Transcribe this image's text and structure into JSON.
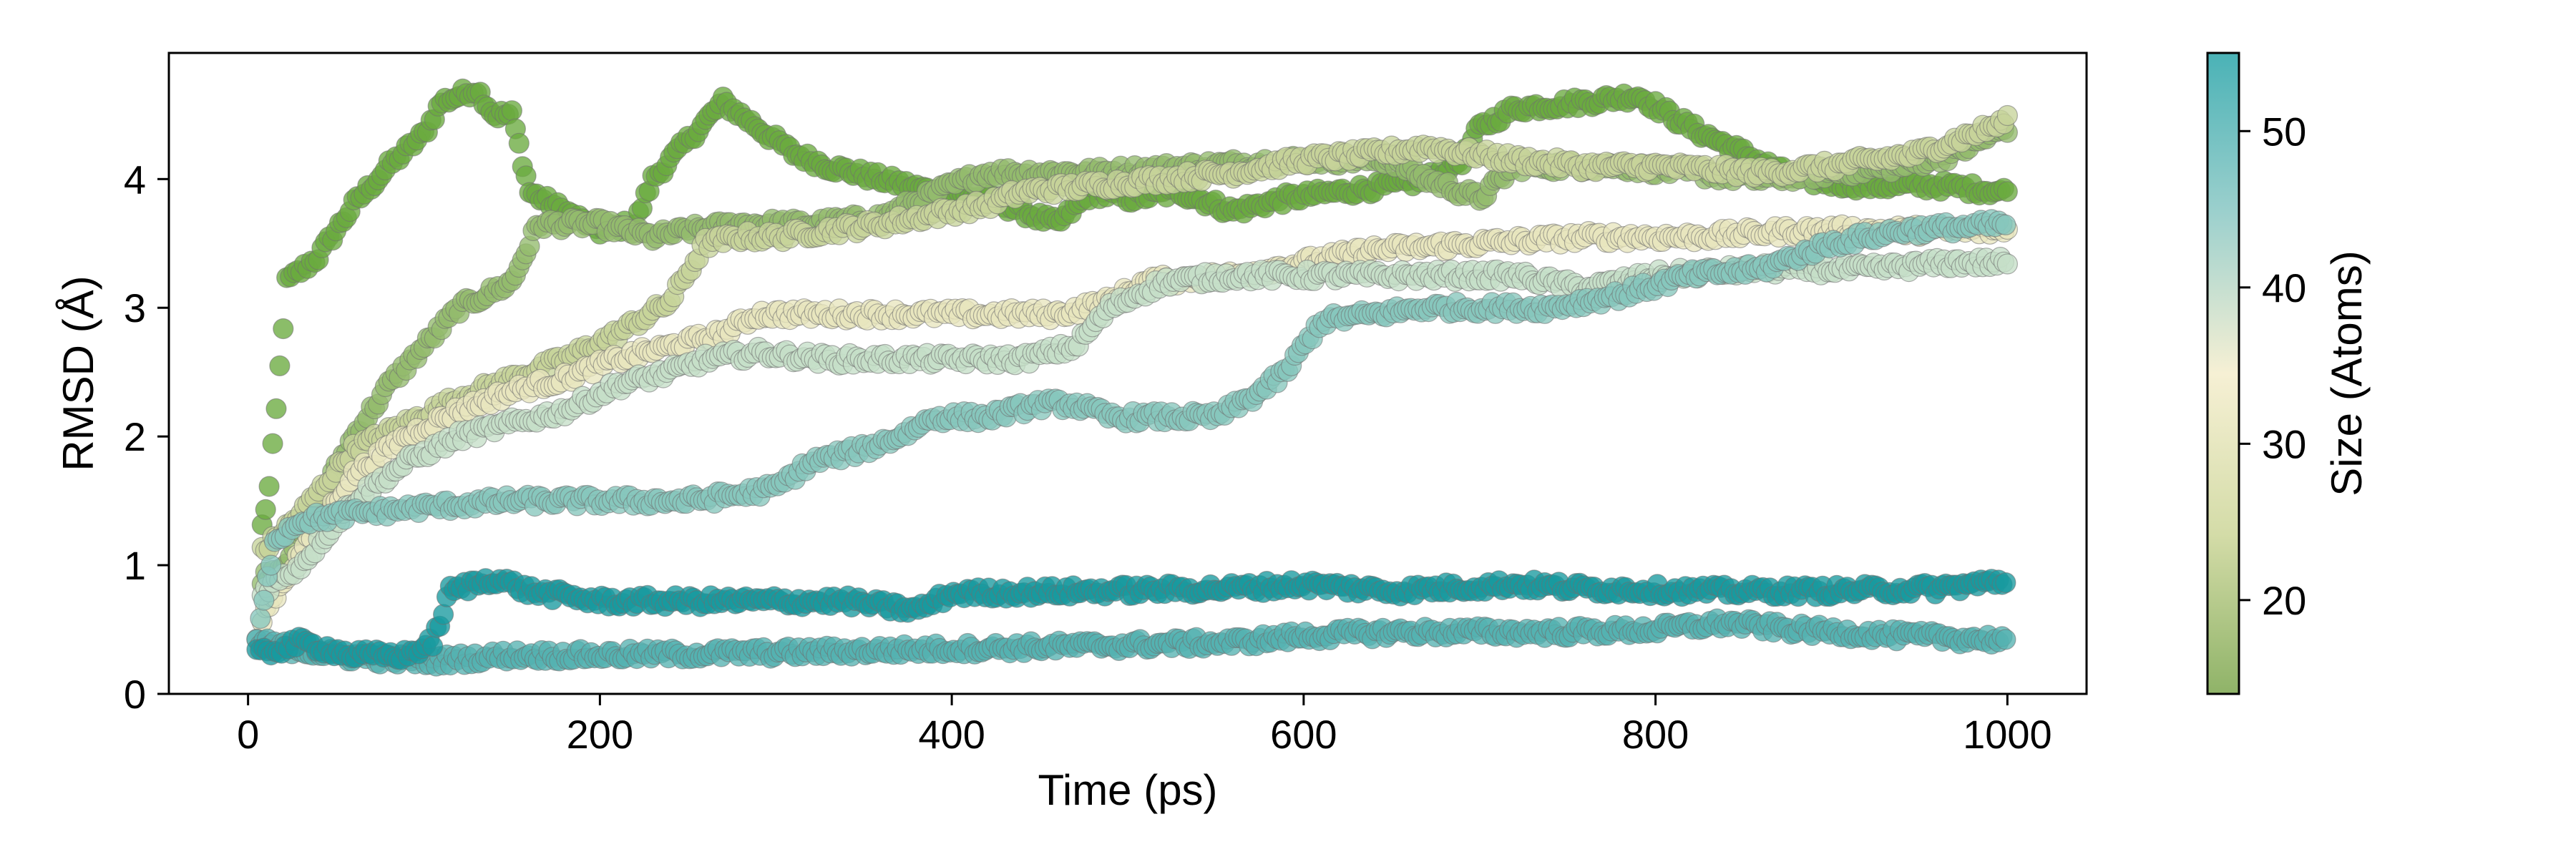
{
  "chart_data": {
    "type": "scatter",
    "title": "",
    "xlabel": "Time (ps)",
    "ylabel": "RMSD (Å)",
    "xlim": [
      -45,
      1045
    ],
    "ylim": [
      0,
      4.98
    ],
    "xticks": [
      0,
      200,
      400,
      600,
      800,
      1000
    ],
    "yticks": [
      0,
      1,
      2,
      3,
      4
    ],
    "grid": false,
    "legend": "none",
    "colorbar": {
      "label": "Size (Atoms)",
      "range": [
        14,
        55
      ],
      "ticks": [
        20,
        30,
        40,
        50
      ],
      "colormap": [
        "#8fb368",
        "#d4dca8",
        "#f6f0d4",
        "#9cd0cd",
        "#4ab2b6"
      ]
    },
    "marker_edge_color": "#6f6f6f",
    "series": [
      {
        "size": 16,
        "color": "#6aab3f",
        "keypoints": [
          [
            8,
            1.3
          ],
          [
            12,
            1.6
          ],
          [
            16,
            2.2
          ],
          [
            22,
            3.2
          ],
          [
            40,
            3.4
          ],
          [
            60,
            3.8
          ],
          [
            80,
            4.1
          ],
          [
            100,
            4.35
          ],
          [
            110,
            4.6
          ],
          [
            130,
            4.7
          ],
          [
            140,
            4.5
          ],
          [
            150,
            4.5
          ],
          [
            160,
            3.9
          ],
          [
            180,
            3.75
          ],
          [
            200,
            3.6
          ],
          [
            220,
            3.65
          ],
          [
            230,
            4.0
          ],
          [
            250,
            4.3
          ],
          [
            270,
            4.6
          ],
          [
            290,
            4.4
          ],
          [
            310,
            4.2
          ],
          [
            330,
            4.1
          ],
          [
            360,
            4.0
          ],
          [
            390,
            3.9
          ],
          [
            420,
            3.85
          ],
          [
            440,
            3.75
          ],
          [
            460,
            3.65
          ],
          [
            480,
            3.9
          ],
          [
            500,
            3.85
          ],
          [
            530,
            3.9
          ],
          [
            560,
            3.75
          ],
          [
            590,
            3.85
          ],
          [
            620,
            3.9
          ],
          [
            650,
            3.95
          ],
          [
            670,
            4.0
          ],
          [
            690,
            4.15
          ],
          [
            700,
            4.4
          ],
          [
            720,
            4.55
          ],
          [
            760,
            4.6
          ],
          [
            790,
            4.65
          ],
          [
            820,
            4.4
          ],
          [
            850,
            4.2
          ],
          [
            880,
            4.0
          ],
          [
            920,
            3.95
          ],
          [
            960,
            3.95
          ],
          [
            1000,
            3.9
          ]
        ]
      },
      {
        "size": 19,
        "color": "#93bb6d",
        "keypoints": [
          [
            8,
            0.9
          ],
          [
            20,
            1.0
          ],
          [
            40,
            1.5
          ],
          [
            60,
            2.0
          ],
          [
            80,
            2.4
          ],
          [
            100,
            2.7
          ],
          [
            120,
            3.0
          ],
          [
            150,
            3.2
          ],
          [
            165,
            3.65
          ],
          [
            200,
            3.65
          ],
          [
            230,
            3.55
          ],
          [
            250,
            3.6
          ],
          [
            280,
            3.65
          ],
          [
            320,
            3.65
          ],
          [
            360,
            3.7
          ],
          [
            400,
            3.95
          ],
          [
            420,
            4.05
          ],
          [
            480,
            4.05
          ],
          [
            540,
            4.1
          ],
          [
            600,
            4.15
          ],
          [
            650,
            4.15
          ],
          [
            670,
            4.0
          ],
          [
            700,
            3.85
          ],
          [
            720,
            4.1
          ],
          [
            780,
            4.1
          ],
          [
            820,
            4.05
          ],
          [
            860,
            4.0
          ],
          [
            900,
            4.05
          ],
          [
            940,
            4.1
          ],
          [
            970,
            4.2
          ],
          [
            1000,
            4.4
          ]
        ]
      },
      {
        "size": 26,
        "color": "#c6d49a",
        "keypoints": [
          [
            8,
            1.1
          ],
          [
            30,
            1.4
          ],
          [
            60,
            1.9
          ],
          [
            90,
            2.1
          ],
          [
            120,
            2.3
          ],
          [
            150,
            2.45
          ],
          [
            180,
            2.6
          ],
          [
            210,
            2.8
          ],
          [
            240,
            3.05
          ],
          [
            260,
            3.5
          ],
          [
            280,
            3.55
          ],
          [
            300,
            3.55
          ],
          [
            330,
            3.6
          ],
          [
            360,
            3.65
          ],
          [
            380,
            3.7
          ],
          [
            400,
            3.75
          ],
          [
            420,
            3.8
          ],
          [
            440,
            3.9
          ],
          [
            480,
            3.95
          ],
          [
            520,
            4.0
          ],
          [
            560,
            4.05
          ],
          [
            600,
            4.15
          ],
          [
            640,
            4.2
          ],
          [
            670,
            4.25
          ],
          [
            720,
            4.15
          ],
          [
            760,
            4.1
          ],
          [
            800,
            4.1
          ],
          [
            860,
            4.05
          ],
          [
            900,
            4.1
          ],
          [
            950,
            4.2
          ],
          [
            1000,
            4.45
          ]
        ]
      },
      {
        "size": 32,
        "color": "#e8e6be",
        "keypoints": [
          [
            8,
            0.6
          ],
          [
            30,
            1.1
          ],
          [
            60,
            1.7
          ],
          [
            90,
            2.0
          ],
          [
            120,
            2.2
          ],
          [
            150,
            2.35
          ],
          [
            180,
            2.45
          ],
          [
            210,
            2.6
          ],
          [
            240,
            2.7
          ],
          [
            270,
            2.8
          ],
          [
            290,
            2.95
          ],
          [
            340,
            2.95
          ],
          [
            400,
            2.95
          ],
          [
            460,
            2.95
          ],
          [
            490,
            3.05
          ],
          [
            510,
            3.2
          ],
          [
            560,
            3.25
          ],
          [
            600,
            3.35
          ],
          [
            640,
            3.45
          ],
          [
            700,
            3.5
          ],
          [
            760,
            3.55
          ],
          [
            820,
            3.55
          ],
          [
            880,
            3.6
          ],
          [
            940,
            3.6
          ],
          [
            1000,
            3.6
          ]
        ]
      },
      {
        "size": 38,
        "color": "#c5dfc8",
        "keypoints": [
          [
            8,
            0.8
          ],
          [
            30,
            1.0
          ],
          [
            60,
            1.5
          ],
          [
            90,
            1.8
          ],
          [
            120,
            2.0
          ],
          [
            150,
            2.1
          ],
          [
            180,
            2.2
          ],
          [
            210,
            2.4
          ],
          [
            240,
            2.5
          ],
          [
            260,
            2.6
          ],
          [
            290,
            2.65
          ],
          [
            330,
            2.6
          ],
          [
            370,
            2.6
          ],
          [
            400,
            2.6
          ],
          [
            440,
            2.6
          ],
          [
            470,
            2.7
          ],
          [
            490,
            3.0
          ],
          [
            520,
            3.2
          ],
          [
            560,
            3.25
          ],
          [
            600,
            3.25
          ],
          [
            660,
            3.25
          ],
          [
            720,
            3.25
          ],
          [
            760,
            3.15
          ],
          [
            800,
            3.25
          ],
          [
            860,
            3.3
          ],
          [
            920,
            3.3
          ],
          [
            970,
            3.35
          ],
          [
            1000,
            3.35
          ]
        ]
      },
      {
        "size": 45,
        "color": "#86c7bd",
        "keypoints": [
          [
            5,
            0.4
          ],
          [
            15,
            1.2
          ],
          [
            30,
            1.35
          ],
          [
            60,
            1.4
          ],
          [
            100,
            1.45
          ],
          [
            150,
            1.5
          ],
          [
            200,
            1.5
          ],
          [
            250,
            1.5
          ],
          [
            280,
            1.55
          ],
          [
            300,
            1.6
          ],
          [
            320,
            1.8
          ],
          [
            350,
            1.9
          ],
          [
            370,
            2.0
          ],
          [
            390,
            2.15
          ],
          [
            420,
            2.15
          ],
          [
            450,
            2.25
          ],
          [
            470,
            2.25
          ],
          [
            490,
            2.15
          ],
          [
            520,
            2.15
          ],
          [
            550,
            2.15
          ],
          [
            570,
            2.3
          ],
          [
            590,
            2.5
          ],
          [
            610,
            2.9
          ],
          [
            640,
            2.95
          ],
          [
            670,
            3.0
          ],
          [
            700,
            3.0
          ],
          [
            740,
            3.0
          ],
          [
            780,
            3.1
          ],
          [
            820,
            3.25
          ],
          [
            860,
            3.3
          ],
          [
            900,
            3.5
          ],
          [
            940,
            3.6
          ],
          [
            1000,
            3.65
          ]
        ]
      },
      {
        "size": 52,
        "color": "#54b2b1",
        "keypoints": [
          [
            5,
            0.4
          ],
          [
            50,
            0.3
          ],
          [
            100,
            0.25
          ],
          [
            150,
            0.3
          ],
          [
            200,
            0.3
          ],
          [
            300,
            0.32
          ],
          [
            400,
            0.35
          ],
          [
            500,
            0.38
          ],
          [
            560,
            0.4
          ],
          [
            600,
            0.45
          ],
          [
            650,
            0.48
          ],
          [
            700,
            0.48
          ],
          [
            750,
            0.48
          ],
          [
            800,
            0.5
          ],
          [
            840,
            0.55
          ],
          [
            880,
            0.5
          ],
          [
            940,
            0.45
          ],
          [
            1000,
            0.42
          ]
        ]
      },
      {
        "size": 55,
        "color": "#189a9f",
        "keypoints": [
          [
            5,
            0.3
          ],
          [
            30,
            0.4
          ],
          [
            60,
            0.3
          ],
          [
            90,
            0.3
          ],
          [
            105,
            0.4
          ],
          [
            115,
            0.8
          ],
          [
            140,
            0.9
          ],
          [
            160,
            0.8
          ],
          [
            200,
            0.72
          ],
          [
            280,
            0.72
          ],
          [
            340,
            0.72
          ],
          [
            380,
            0.65
          ],
          [
            400,
            0.78
          ],
          [
            480,
            0.8
          ],
          [
            560,
            0.82
          ],
          [
            600,
            0.85
          ],
          [
            650,
            0.8
          ],
          [
            720,
            0.85
          ],
          [
            760,
            0.82
          ],
          [
            820,
            0.8
          ],
          [
            900,
            0.8
          ],
          [
            960,
            0.82
          ],
          [
            1000,
            0.88
          ]
        ]
      }
    ]
  }
}
